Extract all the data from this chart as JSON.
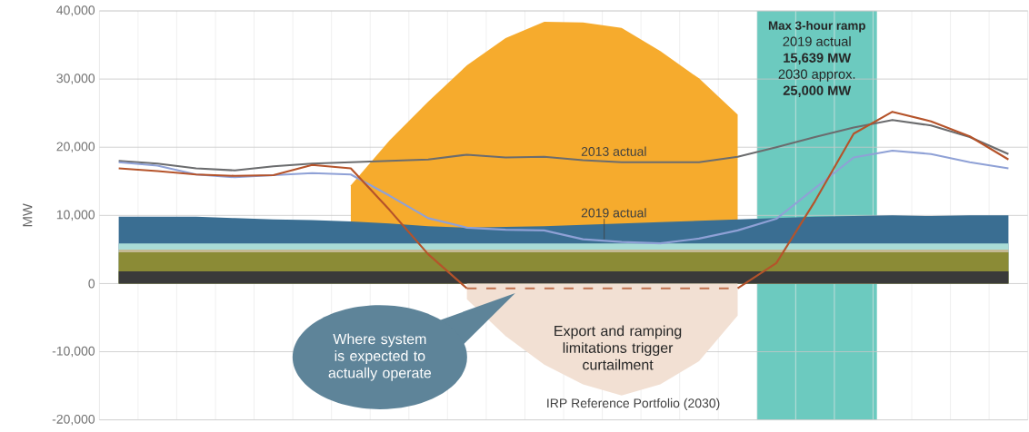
{
  "chart_data": {
    "type": "line",
    "ylabel": "MW",
    "categories": [
      null,
      null,
      null,
      null,
      null,
      null,
      null,
      null,
      null,
      null,
      null,
      null,
      null,
      null,
      null,
      null,
      null,
      null,
      null,
      null,
      null,
      null,
      null,
      null
    ],
    "ylim": [
      -20000,
      40000
    ],
    "yticks": [
      {
        "value": -20000,
        "label": "-20,000"
      },
      {
        "value": -10000,
        "label": "-10,000"
      },
      {
        "value": 0,
        "label": "0"
      },
      {
        "value": 10000,
        "label": "10,000"
      },
      {
        "value": 20000,
        "label": "20,000"
      },
      {
        "value": 30000,
        "label": "30,000"
      },
      {
        "value": 40000,
        "label": "40,000"
      }
    ],
    "tick_labels": "y",
    "grid": true,
    "series": [
      {
        "type": "area",
        "color": "#f6ab2d",
        "values": [
          null,
          null,
          null,
          null,
          null,
          null,
          14400,
          21000,
          26700,
          32000,
          36000,
          38400,
          38300,
          37500,
          34100,
          30100,
          24800,
          null,
          null,
          null,
          null,
          null,
          null,
          null
        ]
      },
      {
        "type": "area",
        "color": "#3a6e92",
        "values": [
          9800,
          9800,
          9800,
          9600,
          9400,
          9300,
          9100,
          8800,
          8400,
          8200,
          8300,
          8400,
          8600,
          8800,
          9000,
          9200,
          9400,
          9600,
          9800,
          9900,
          10000,
          9900,
          10000,
          10000
        ]
      },
      {
        "type": "area",
        "color": "#a9dcd6",
        "values": [
          5900,
          5900,
          5900,
          5900,
          5900,
          5900,
          5900,
          5900,
          5900,
          5900,
          5900,
          5900,
          5900,
          5900,
          5900,
          5900,
          5900,
          5900,
          5900,
          5900,
          5900,
          5900,
          5900,
          5900
        ]
      },
      {
        "type": "area",
        "color": "#c4b994",
        "values": [
          5000,
          5000,
          5000,
          5000,
          5000,
          5000,
          5000,
          5000,
          5000,
          5000,
          5000,
          5000,
          5000,
          5000,
          5000,
          5000,
          5000,
          5000,
          5000,
          5000,
          5000,
          5000,
          5000,
          5000
        ]
      },
      {
        "type": "area",
        "color": "#8b8b36",
        "values": [
          4600,
          4600,
          4600,
          4600,
          4600,
          4600,
          4600,
          4600,
          4600,
          4600,
          4600,
          4600,
          4600,
          4600,
          4600,
          4600,
          4600,
          4600,
          4600,
          4600,
          4600,
          4600,
          4600,
          4600
        ]
      },
      {
        "type": "area",
        "color": "#3a3a3a",
        "values": [
          1800,
          1800,
          1800,
          1800,
          1800,
          1800,
          1800,
          1800,
          1800,
          1800,
          1800,
          1800,
          1800,
          1800,
          1800,
          1800,
          1800,
          1800,
          1800,
          1800,
          1800,
          1800,
          1800,
          1800
        ]
      },
      {
        "type": "area",
        "name": "IRP Reference Portfolio (2030)",
        "color": "#f2e0d3",
        "values": [
          null,
          null,
          null,
          null,
          null,
          null,
          null,
          null,
          null,
          -2300,
          -7700,
          -11900,
          -14800,
          -16400,
          -14800,
          -11400,
          -4700,
          null,
          null,
          null,
          null,
          null,
          null,
          null
        ]
      },
      {
        "name": "2013 actual",
        "color": "#6b6c6e",
        "values": [
          18000,
          17600,
          16900,
          16600,
          17200,
          17600,
          17800,
          18000,
          18200,
          18900,
          18500,
          18600,
          18100,
          17800,
          17800,
          17800,
          18600,
          20000,
          21500,
          22900,
          24000,
          23200,
          21500,
          19000
        ]
      },
      {
        "name": "2019 actual",
        "color": "#8fa1d6",
        "values": [
          17800,
          17300,
          16000,
          15600,
          15900,
          16200,
          16000,
          12900,
          9600,
          8200,
          7900,
          7800,
          6500,
          6100,
          5900,
          6600,
          7800,
          9500,
          14000,
          18500,
          19500,
          19000,
          17800,
          16900
        ]
      },
      {
        "color": "#b5532a",
        "values": [
          16900,
          16500,
          16000,
          15800,
          15900,
          17400,
          16900,
          10800,
          4300,
          -700,
          null,
          null,
          null,
          null,
          null,
          null,
          -700,
          3000,
          12100,
          22000,
          25200,
          23800,
          21600,
          18200
        ]
      },
      {
        "color": "#c0714f",
        "line_style": "dashed",
        "values": [
          null,
          null,
          null,
          null,
          null,
          null,
          null,
          null,
          null,
          -700,
          -700,
          -700,
          -700,
          -700,
          -700,
          -700,
          -700,
          null,
          null,
          null,
          null,
          null,
          null,
          null
        ]
      }
    ],
    "annotations": [
      "Max 3-hour ramp",
      "2019 actual",
      "15,639 MW",
      "2030 approx.",
      "25,000 MW",
      "Where system is expected to actually operate",
      "Export and ramping limitations trigger curtailment"
    ]
  }
}
